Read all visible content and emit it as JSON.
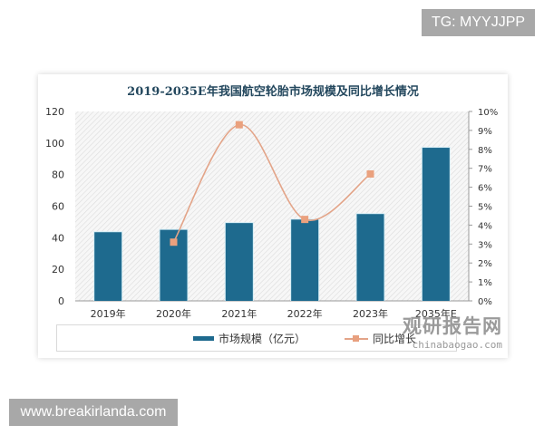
{
  "watermarks": {
    "top_right": "TG: MYYJJPP",
    "bottom_left": "www.breakirlanda.com",
    "source_cn": "观研报告网",
    "source_en": "chinabaogao.com"
  },
  "chart_data": {
    "type": "bar",
    "title": "2019-2035E年我国航空轮胎市场规模及同比增长情况",
    "categories": [
      "2019年",
      "2020年",
      "2021年",
      "2022年",
      "2023年",
      "2035年E"
    ],
    "series": [
      {
        "name": "市场规模（亿元）",
        "type": "bar",
        "axis": "left",
        "color": "#1e6a8e",
        "values": [
          43.5,
          45.0,
          49.3,
          51.5,
          55.0,
          97.0
        ]
      },
      {
        "name": "同比增长",
        "type": "line",
        "axis": "right",
        "color": "#e3a488",
        "values": [
          null,
          0.031,
          0.093,
          0.043,
          0.067,
          null
        ]
      }
    ],
    "left_axis": {
      "min": 0,
      "max": 120,
      "ticks": [
        "0",
        "20",
        "40",
        "60",
        "80",
        "100",
        "120"
      ]
    },
    "right_axis": {
      "min": 0,
      "max": 0.1,
      "ticks": [
        "0%",
        "1%",
        "2%",
        "3%",
        "4%",
        "5%",
        "6%",
        "7%",
        "8%",
        "9%",
        "10%"
      ]
    },
    "xlabel": "",
    "ylabel": "",
    "legend_position": "bottom",
    "grid": false
  },
  "legend": {
    "bar_label": "市场规模（亿元）",
    "line_label": "同比增长"
  }
}
